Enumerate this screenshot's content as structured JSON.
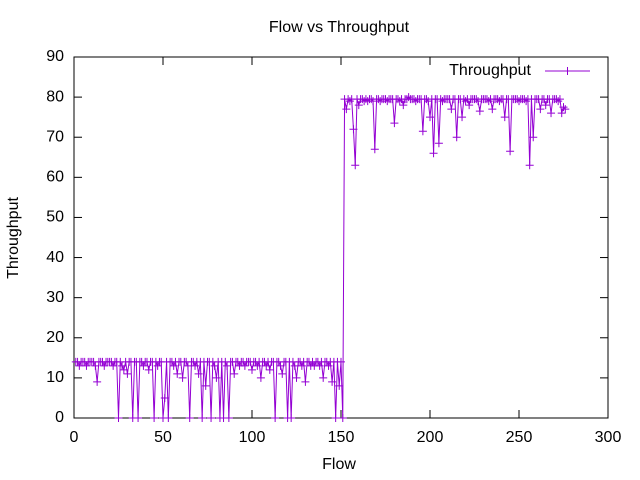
{
  "chart_data": {
    "type": "line",
    "title": "Flow vs Throughput",
    "x_label": "Flow",
    "y_label": "Throughput",
    "xlim": [
      0,
      300
    ],
    "xticks": [
      0,
      50,
      100,
      150,
      200,
      250,
      300
    ],
    "ylim": [
      0,
      90
    ],
    "yticks": [
      0,
      10,
      20,
      30,
      40,
      50,
      60,
      70,
      80,
      90
    ],
    "legend": "top-right",
    "series": [
      {
        "name": "Throughput",
        "color": "#9400d3",
        "x": [
          1,
          2,
          3,
          4,
          5,
          6,
          7,
          8,
          9,
          10,
          11,
          12,
          13,
          14,
          15,
          16,
          17,
          18,
          19,
          20,
          21,
          22,
          23,
          24,
          25,
          26,
          27,
          28,
          29,
          30,
          31,
          32,
          33,
          34,
          35,
          36,
          37,
          38,
          39,
          40,
          41,
          42,
          43,
          44,
          45,
          46,
          47,
          48,
          49,
          50,
          51,
          52,
          53,
          54,
          55,
          56,
          57,
          58,
          59,
          60,
          61,
          62,
          63,
          64,
          65,
          66,
          67,
          68,
          69,
          70,
          71,
          72,
          73,
          74,
          75,
          76,
          77,
          78,
          79,
          80,
          81,
          82,
          83,
          84,
          85,
          86,
          87,
          88,
          89,
          90,
          91,
          92,
          93,
          94,
          95,
          96,
          97,
          98,
          99,
          100,
          101,
          102,
          103,
          104,
          105,
          106,
          107,
          108,
          109,
          110,
          111,
          112,
          113,
          114,
          115,
          116,
          117,
          118,
          119,
          120,
          121,
          122,
          123,
          124,
          125,
          126,
          127,
          128,
          129,
          130,
          131,
          132,
          133,
          134,
          135,
          136,
          137,
          138,
          139,
          140,
          141,
          142,
          143,
          144,
          145,
          146,
          147,
          148,
          149,
          150,
          151,
          152,
          153,
          154,
          155,
          156,
          157,
          158,
          159,
          160,
          161,
          162,
          163,
          164,
          165,
          166,
          167,
          168,
          169,
          170,
          171,
          172,
          173,
          174,
          175,
          176,
          177,
          178,
          179,
          180,
          181,
          182,
          183,
          184,
          185,
          186,
          187,
          188,
          189,
          190,
          191,
          192,
          193,
          194,
          195,
          196,
          197,
          198,
          199,
          200,
          201,
          202,
          203,
          204,
          205,
          206,
          207,
          208,
          209,
          210,
          211,
          212,
          213,
          214,
          215,
          216,
          217,
          218,
          219,
          220,
          221,
          222,
          223,
          224,
          225,
          226,
          227,
          228,
          229,
          230,
          231,
          232,
          233,
          234,
          235,
          236,
          237,
          238,
          239,
          240,
          241,
          242,
          243,
          244,
          245,
          246,
          247,
          248,
          249,
          250,
          251,
          252,
          253,
          254,
          255,
          256,
          257,
          258,
          259,
          260,
          261,
          262,
          263,
          264,
          265,
          266,
          267,
          268,
          269,
          270,
          271,
          272,
          273,
          274,
          275,
          276
        ],
        "values": [
          14,
          14,
          13,
          14,
          14,
          14,
          13,
          14,
          14,
          14,
          14,
          13,
          9,
          14,
          14,
          14,
          13,
          14,
          14,
          14,
          14,
          13,
          14,
          14,
          0,
          14,
          13,
          12,
          14,
          11,
          14,
          14,
          0,
          14,
          14,
          0,
          14,
          14,
          13,
          14,
          14,
          12,
          14,
          14,
          0,
          14,
          13,
          14,
          14,
          0,
          5,
          14,
          0,
          14,
          14,
          13,
          14,
          11,
          14,
          14,
          10,
          14,
          14,
          13,
          0,
          14,
          14,
          13,
          14,
          11,
          14,
          0,
          14,
          8,
          14,
          14,
          0,
          14,
          13,
          10,
          14,
          0,
          14,
          0,
          14,
          13,
          0,
          14,
          14,
          11,
          14,
          14,
          13,
          14,
          14,
          13,
          14,
          14,
          14,
          12,
          14,
          14,
          13,
          14,
          10,
          14,
          14,
          13,
          14,
          12,
          14,
          14,
          0,
          14,
          14,
          13,
          11,
          14,
          14,
          0,
          14,
          0,
          14,
          13,
          10,
          14,
          14,
          13,
          14,
          9,
          14,
          14,
          13,
          14,
          13,
          14,
          14,
          13,
          14,
          10,
          14,
          14,
          13,
          14,
          9,
          14,
          0,
          14,
          8,
          14,
          0,
          79.5,
          77,
          79.5,
          79,
          79.5,
          72,
          63,
          79.5,
          78,
          79.5,
          79.5,
          79,
          79.5,
          79,
          79.5,
          79.5,
          79,
          67,
          79.5,
          79.5,
          79,
          79.5,
          79.5,
          79.5,
          79,
          79.5,
          79.5,
          79.5,
          73.5,
          79.5,
          79.5,
          79,
          79.5,
          78,
          79.5,
          79.5,
          80,
          79.5,
          79.5,
          79.5,
          79,
          79.5,
          79.5,
          79.5,
          71.5,
          79.5,
          79.5,
          79,
          75,
          79.5,
          66,
          79.5,
          79.5,
          68.5,
          79.5,
          79,
          79.5,
          79.5,
          79.5,
          79.5,
          77,
          79.5,
          79.5,
          70,
          79.5,
          79.5,
          75,
          79.5,
          79,
          79.5,
          78,
          79.5,
          79.5,
          79.5,
          79.5,
          79,
          76.5,
          79.5,
          79.5,
          79.5,
          79.5,
          79,
          79.5,
          77,
          79.5,
          79.5,
          79.5,
          79,
          79.5,
          79.5,
          75,
          79.5,
          79.5,
          66.5,
          79.5,
          79.5,
          79.5,
          79.5,
          79,
          79.5,
          79.5,
          79.5,
          79,
          79.5,
          63,
          79.5,
          70,
          79.5,
          79.5,
          79.5,
          77,
          79.5,
          79.5,
          78,
          79.5,
          79.5,
          76,
          79.5,
          79.5,
          79.5,
          79,
          79.5,
          76,
          77.5,
          77
        ]
      }
    ]
  }
}
